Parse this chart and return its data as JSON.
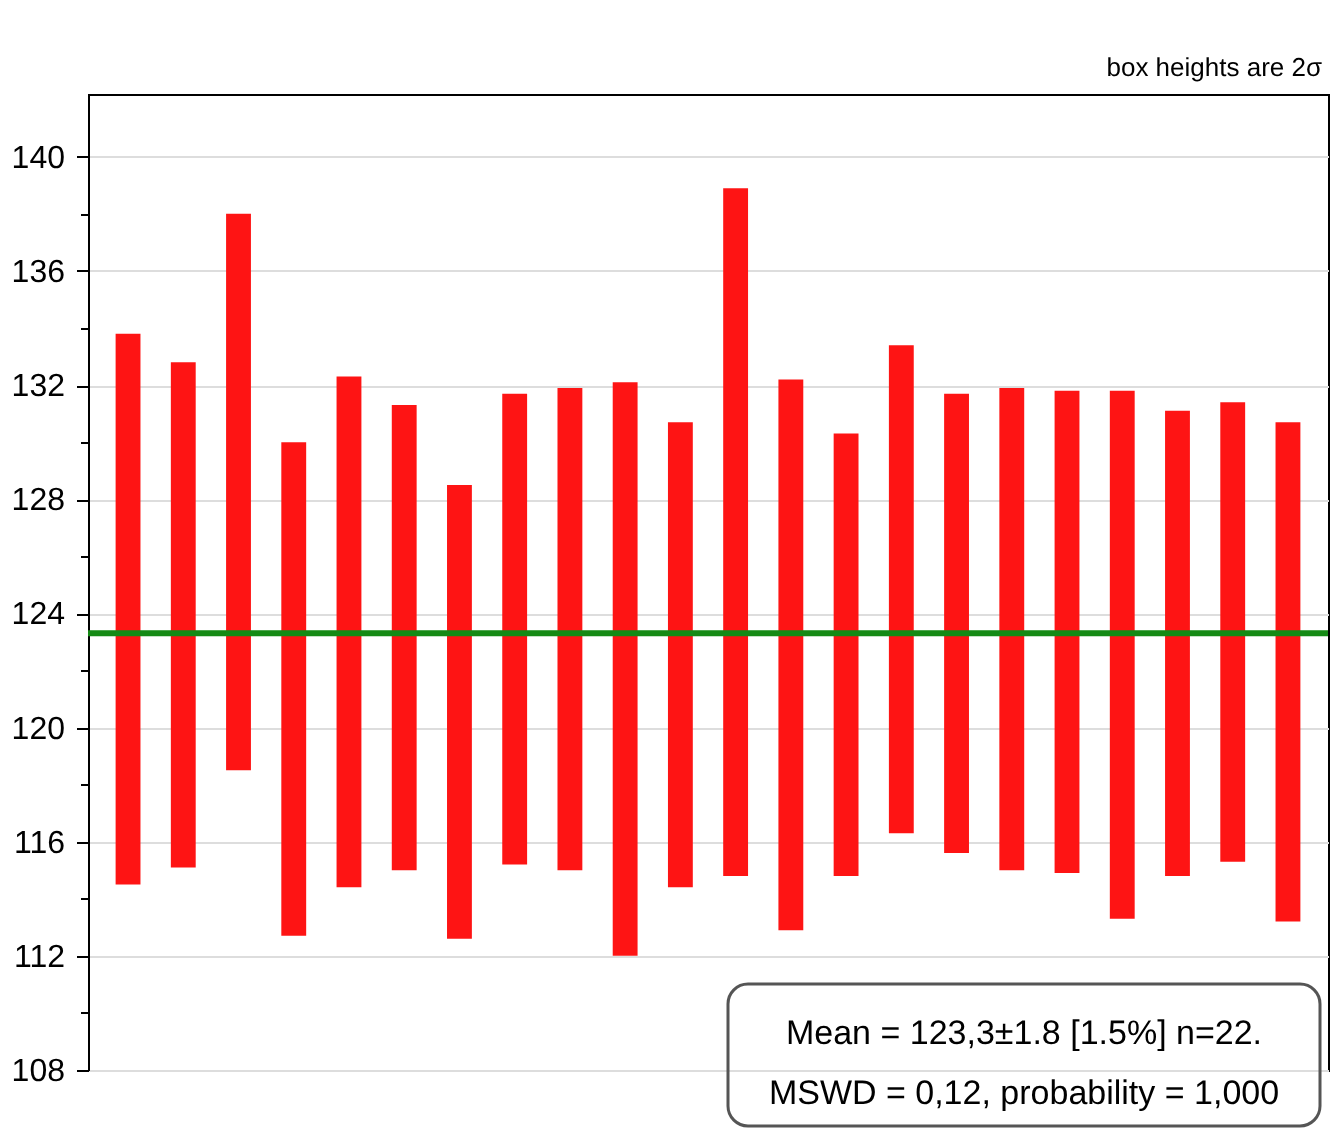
{
  "chart_data": {
    "type": "bar",
    "categories": [
      null,
      null,
      null,
      null,
      null,
      null,
      null,
      null,
      null,
      null,
      null,
      null,
      null,
      null,
      null,
      null,
      null,
      null,
      null,
      null,
      null,
      null
    ],
    "base": [
      114.5,
      115.1,
      118.5,
      112.7,
      114.4,
      115.0,
      112.6,
      115.2,
      115.0,
      112.0,
      114.4,
      114.8,
      112.9,
      114.8,
      116.3,
      115.6,
      115.0,
      114.9,
      113.3,
      114.8,
      115.3,
      113.2
    ],
    "values": [
      19.3,
      17.7,
      19.5,
      17.3,
      17.9,
      16.3,
      15.9,
      16.5,
      16.9,
      20.1,
      16.3,
      24.1,
      19.3,
      15.5,
      17.1,
      16.1,
      16.9,
      16.9,
      18.5,
      16.3,
      16.1,
      17.5
    ],
    "color": "#fe1414",
    "ylim": [
      108,
      142.2
    ],
    "yticks": [
      108,
      {
        "value": 110,
        "label": null
      },
      112,
      {
        "value": 114,
        "label": null
      },
      116,
      {
        "value": 118,
        "label": null
      },
      120,
      {
        "value": 122,
        "label": null
      },
      124,
      {
        "value": 126,
        "label": null
      },
      128,
      {
        "value": 130,
        "label": null
      },
      132,
      {
        "value": 134,
        "label": null
      },
      136,
      {
        "value": 138,
        "label": null
      },
      140
    ],
    "grid": "y",
    "tick_labels": "y",
    "ref_lines": [
      {
        "axis": "y",
        "value": 123.3,
        "color": "#158a15"
      }
    ],
    "annotations": [
      "box heights are 2σ",
      "Mean = 123,3±1.8  [1.5%]  n=22.",
      "MSWD = 0,12, probability = 1,000"
    ]
  }
}
